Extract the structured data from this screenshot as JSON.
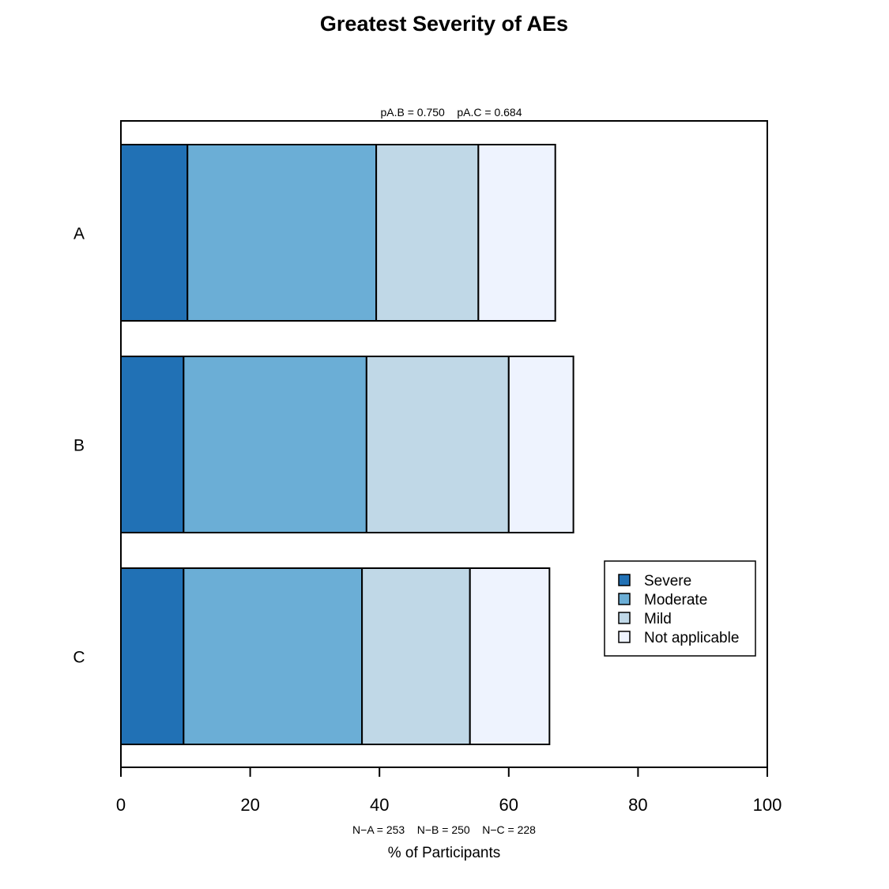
{
  "chart_data": {
    "type": "bar",
    "orientation": "horizontal",
    "stacked": true,
    "title": "Greatest Severity of AEs",
    "subtitle": "pA.B = 0.750    pA.C = 0.684",
    "xlabel": "% of Participants",
    "xlabel_note": "N−A = 253    N−B = 250    N−C = 228",
    "ylabel": "",
    "xlim": [
      0,
      100
    ],
    "xticks": [
      "0",
      "20",
      "40",
      "60",
      "80",
      "100"
    ],
    "categories": [
      "A",
      "B",
      "C"
    ],
    "series": [
      {
        "name": "Severe",
        "color": "#2171b5",
        "values": [
          10.3,
          9.7,
          9.7
        ]
      },
      {
        "name": "Moderate",
        "color": "#6baed6",
        "values": [
          29.2,
          28.3,
          27.6
        ]
      },
      {
        "name": "Mild",
        "color": "#c0d8e7",
        "values": [
          15.8,
          22.0,
          16.7
        ]
      },
      {
        "name": "Not applicable",
        "color": "#eef3fe",
        "values": [
          11.9,
          10.0,
          12.3
        ]
      }
    ],
    "legend_position": "bottom-right",
    "grid": false
  }
}
